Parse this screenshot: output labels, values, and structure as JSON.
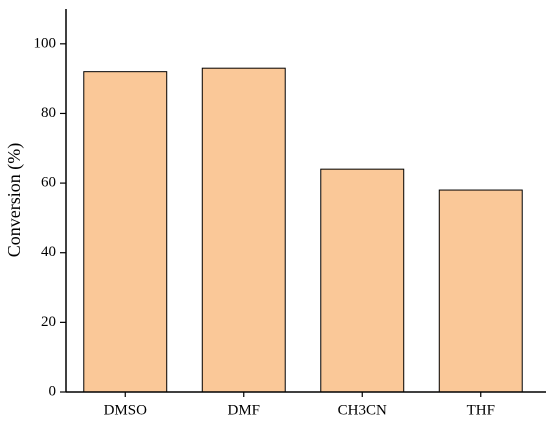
{
  "chart_data": {
    "type": "bar",
    "y_label": "Conversion (%)",
    "categories": [
      "DMSO",
      "DMF",
      "CH3CN",
      "THF"
    ],
    "values": [
      92,
      93,
      64,
      58
    ],
    "color": "#fac898",
    "ylim": [
      0,
      110
    ],
    "yticks": [
      0,
      20,
      40,
      60,
      80,
      100
    ],
    "grid": false
  }
}
